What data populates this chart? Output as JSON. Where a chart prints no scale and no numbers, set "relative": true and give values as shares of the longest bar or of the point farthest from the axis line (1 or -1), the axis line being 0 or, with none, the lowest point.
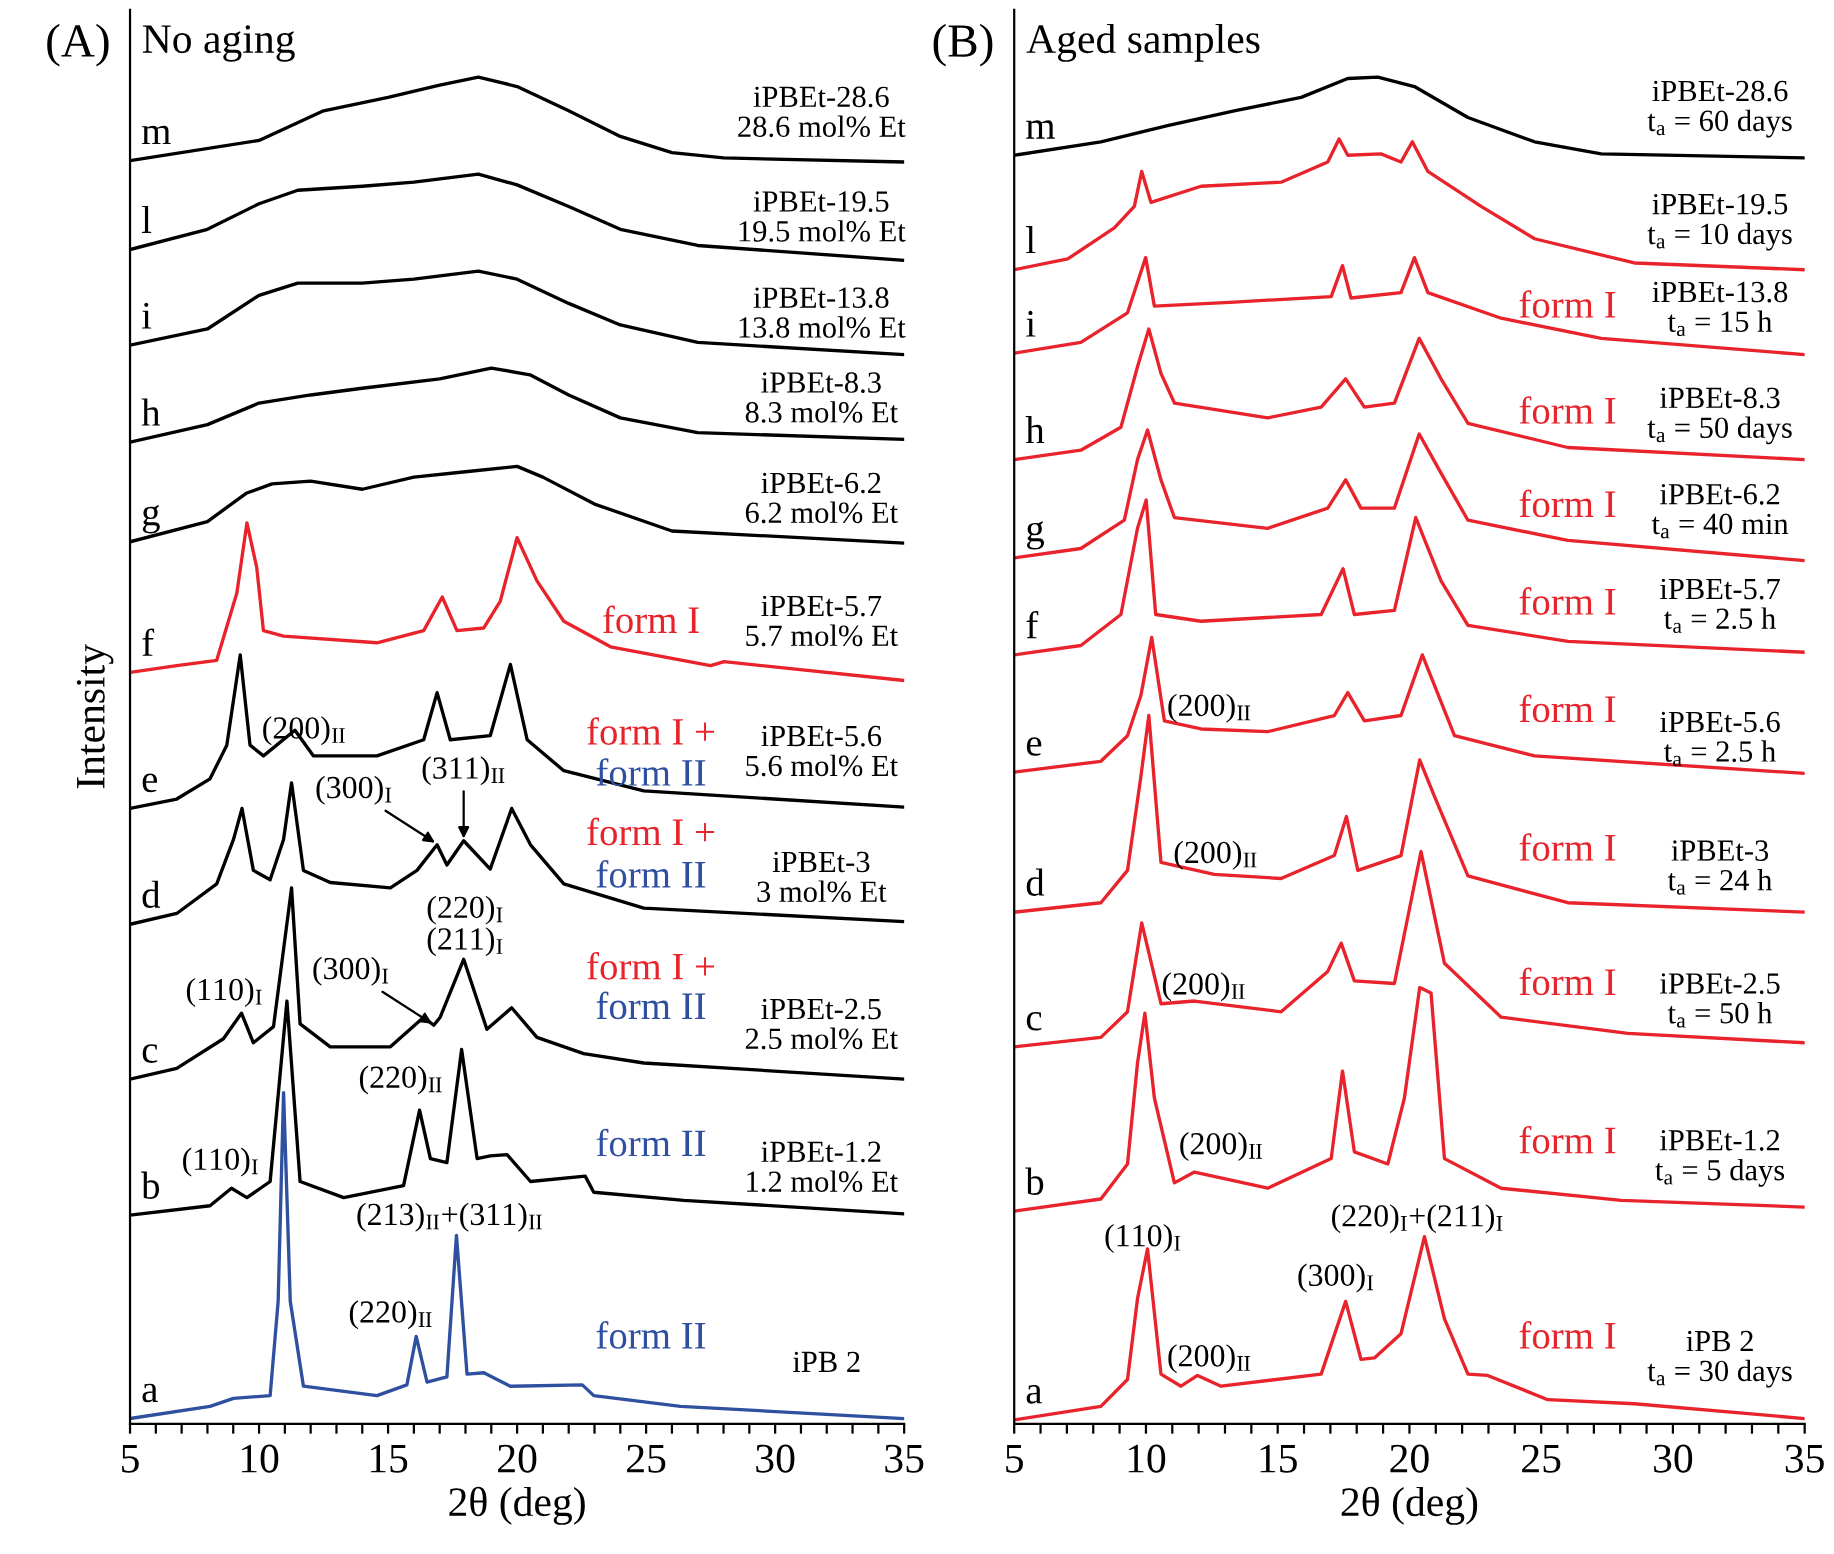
{
  "chart_data": [
    {
      "type": "line",
      "relative": true,
      "title": "(A)",
      "subtitle": "No aging",
      "xlabel": "2θ (deg)",
      "ylabel": "Intensity",
      "tick_labels": "x",
      "xlim": [
        5,
        35
      ],
      "xticks": [
        5,
        {
          "value": 6,
          "label": null
        },
        {
          "value": 7,
          "label": null
        },
        {
          "value": 8,
          "label": null
        },
        {
          "value": 9,
          "label": null
        },
        10,
        {
          "value": 11,
          "label": null
        },
        {
          "value": 12,
          "label": null
        },
        {
          "value": 13,
          "label": null
        },
        {
          "value": 14,
          "label": null
        },
        15,
        {
          "value": 16,
          "label": null
        },
        {
          "value": 17,
          "label": null
        },
        {
          "value": 18,
          "label": null
        },
        {
          "value": 19,
          "label": null
        },
        20,
        {
          "value": 21,
          "label": null
        },
        {
          "value": 22,
          "label": null
        },
        {
          "value": 23,
          "label": null
        },
        {
          "value": 24,
          "label": null
        },
        25,
        {
          "value": 26,
          "label": null
        },
        {
          "value": 27,
          "label": null
        },
        {
          "value": 28,
          "label": null
        },
        {
          "value": 29,
          "label": null
        },
        30,
        {
          "value": 31,
          "label": null
        },
        {
          "value": 32,
          "label": null
        },
        {
          "value": 33,
          "label": null
        },
        {
          "value": 34,
          "label": null
        },
        35
      ],
      "series": [
        {
          "name": "m",
          "color": "#000000",
          "x": [
            5,
            10,
            12.5,
            15,
            17,
            18.5,
            20,
            22,
            24,
            26,
            28,
            35
          ],
          "values": [
            0.938,
            0.953,
            0.975,
            0.985,
            0.994,
            1.0,
            0.993,
            0.975,
            0.956,
            0.944,
            0.94,
            0.937
          ]
        },
        {
          "name": "l",
          "color": "#000000",
          "x": [
            5,
            8,
            10,
            11.5,
            14,
            16,
            18.5,
            20,
            22,
            24,
            27,
            35
          ],
          "values": [
            0.872,
            0.887,
            0.906,
            0.916,
            0.919,
            0.922,
            0.928,
            0.92,
            0.904,
            0.887,
            0.875,
            0.864
          ]
        },
        {
          "name": "i",
          "color": "#000000",
          "x": [
            5,
            8,
            10,
            11.5,
            14,
            16,
            18.5,
            20,
            22,
            24,
            27,
            35
          ],
          "values": [
            0.801,
            0.813,
            0.838,
            0.847,
            0.847,
            0.85,
            0.856,
            0.85,
            0.832,
            0.816,
            0.803,
            0.794
          ]
        },
        {
          "name": "h",
          "color": "#000000",
          "x": [
            5,
            8,
            10,
            12,
            14,
            17,
            19,
            20.5,
            22,
            24,
            27,
            35
          ],
          "values": [
            0.729,
            0.742,
            0.758,
            0.764,
            0.769,
            0.776,
            0.784,
            0.779,
            0.764,
            0.747,
            0.736,
            0.731
          ]
        },
        {
          "name": "g",
          "color": "#000000",
          "x": [
            5,
            8,
            9.5,
            10.5,
            12,
            14,
            16,
            18,
            20,
            21,
            23,
            26,
            35
          ],
          "values": [
            0.655,
            0.67,
            0.691,
            0.698,
            0.7,
            0.694,
            0.703,
            0.707,
            0.711,
            0.703,
            0.683,
            0.663,
            0.654
          ]
        },
        {
          "name": "f",
          "color": "#e8232b",
          "x": [
            5,
            6.81,
            8.36,
            9.14,
            9.53,
            9.91,
            10.17,
            10.95,
            14.57,
            16.38,
            17.1,
            17.67,
            18.71,
            19.35,
            20.0,
            20.77,
            21.81,
            23.62,
            27.5,
            28.02,
            35
          ],
          "values": [
            0.558,
            0.563,
            0.567,
            0.617,
            0.669,
            0.636,
            0.589,
            0.585,
            0.58,
            0.589,
            0.614,
            0.589,
            0.591,
            0.611,
            0.658,
            0.626,
            0.596,
            0.577,
            0.563,
            0.566,
            0.552
          ]
        },
        {
          "name": "e",
          "color": "#000000",
          "x": [
            5,
            6.81,
            8.1,
            8.75,
            9.27,
            9.65,
            10.17,
            11.39,
            12.11,
            14.57,
            16.38,
            16.9,
            17.41,
            18.96,
            19.74,
            20.39,
            21.81,
            24.91,
            35
          ],
          "values": [
            0.457,
            0.464,
            0.479,
            0.504,
            0.571,
            0.504,
            0.496,
            0.515,
            0.496,
            0.496,
            0.508,
            0.543,
            0.508,
            0.511,
            0.564,
            0.508,
            0.485,
            0.47,
            0.458
          ]
        },
        {
          "name": "d",
          "color": "#000000",
          "x": [
            5,
            6.81,
            8.36,
            9.01,
            9.34,
            9.78,
            10.43,
            10.95,
            11.26,
            11.72,
            12.76,
            15.09,
            16.12,
            16.9,
            17.28,
            17.93,
            18.96,
            19.79,
            20.52,
            21.81,
            24.91,
            35
          ],
          "values": [
            0.371,
            0.379,
            0.401,
            0.434,
            0.457,
            0.411,
            0.404,
            0.434,
            0.476,
            0.411,
            0.402,
            0.398,
            0.411,
            0.43,
            0.415,
            0.433,
            0.412,
            0.457,
            0.43,
            0.401,
            0.383,
            0.373
          ]
        },
        {
          "name": "c",
          "color": "#000000",
          "x": [
            5,
            6.81,
            8.62,
            9.32,
            9.78,
            10.56,
            11.26,
            11.59,
            12.76,
            15.09,
            16.38,
            16.77,
            17.02,
            17.93,
            18.83,
            19.79,
            20.77,
            22.58,
            24.91,
            35
          ],
          "values": [
            0.256,
            0.264,
            0.286,
            0.305,
            0.283,
            0.295,
            0.398,
            0.297,
            0.28,
            0.28,
            0.302,
            0.296,
            0.302,
            0.345,
            0.293,
            0.309,
            0.287,
            0.275,
            0.268,
            0.256
          ]
        },
        {
          "name": "b",
          "color": "#000000",
          "x": [
            5,
            8.1,
            8.93,
            9.53,
            10.43,
            11.08,
            11.59,
            13.28,
            15.6,
            16.22,
            16.64,
            17.28,
            17.85,
            18.45,
            18.96,
            19.61,
            20.52,
            22.64,
            22.97,
            26.46,
            35
          ],
          "values": [
            0.155,
            0.162,
            0.175,
            0.168,
            0.18,
            0.314,
            0.18,
            0.168,
            0.177,
            0.233,
            0.197,
            0.194,
            0.278,
            0.197,
            0.199,
            0.2,
            0.18,
            0.184,
            0.172,
            0.166,
            0.156
          ]
        },
        {
          "name": "a",
          "color": "#2f4f9f",
          "x": [
            5,
            8.1,
            9.01,
            10.43,
            10.74,
            10.95,
            11.21,
            11.72,
            14.57,
            15.73,
            16.09,
            16.51,
            17.28,
            17.65,
            18.06,
            18.71,
            19.74,
            22.53,
            22.97,
            26.33,
            35
          ],
          "values": [
            0.004,
            0.013,
            0.019,
            0.021,
            0.091,
            0.246,
            0.091,
            0.028,
            0.021,
            0.029,
            0.065,
            0.031,
            0.035,
            0.14,
            0.037,
            0.038,
            0.028,
            0.029,
            0.021,
            0.013,
            0.004
          ]
        }
      ],
      "annotations": [
        "iPBEt-28.6\n28.6 mol% Et",
        "iPBEt-19.5\n19.5 mol% Et",
        "iPBEt-13.8\n13.8 mol% Et",
        "iPBEt-8.3\n8.3 mol% Et",
        "iPBEt-6.2\n6.2 mol% Et",
        "iPBEt-5.7\n5.7 mol% Et",
        "iPBEt-5.6\n5.6 mol% Et",
        "iPBEt-3\n3 mol% Et",
        "iPBEt-2.5\n2.5 mol% Et",
        "iPBEt-1.2\n1.2 mol% Et",
        "iPB 2",
        "form I",
        "form I +",
        "form II",
        "form I +",
        "form II",
        "form I +",
        "form II",
        "form II",
        "form II",
        "(200)$_{II}$",
        "(300)$_{I}$",
        "(311)$_{II}$",
        "(220)$_{I}$\n(211)$_{I}$",
        "(110)$_{I}$",
        "(300)$_{I}$",
        "(220)$_{II}$",
        "(110)$_{I}$",
        "(213)$_{II}$+(311)$_{II}$",
        "(220)$_{II}$"
      ]
    },
    {
      "type": "line",
      "relative": true,
      "title": "(B)",
      "subtitle": "Aged samples",
      "xlabel": "2θ (deg)",
      "tick_labels": "x",
      "xlim": [
        5,
        35
      ],
      "xticks": [
        5,
        {
          "value": 6,
          "label": null
        },
        {
          "value": 7,
          "label": null
        },
        {
          "value": 8,
          "label": null
        },
        {
          "value": 9,
          "label": null
        },
        10,
        {
          "value": 11,
          "label": null
        },
        {
          "value": 12,
          "label": null
        },
        {
          "value": 13,
          "label": null
        },
        {
          "value": 14,
          "label": null
        },
        15,
        {
          "value": 16,
          "label": null
        },
        {
          "value": 17,
          "label": null
        },
        {
          "value": 18,
          "label": null
        },
        {
          "value": 19,
          "label": null
        },
        20,
        {
          "value": 21,
          "label": null
        },
        {
          "value": 22,
          "label": null
        },
        {
          "value": 23,
          "label": null
        },
        {
          "value": 24,
          "label": null
        },
        25,
        {
          "value": 26,
          "label": null
        },
        {
          "value": 27,
          "label": null
        },
        {
          "value": 28,
          "label": null
        },
        {
          "value": 29,
          "label": null
        },
        30,
        {
          "value": 31,
          "label": null
        },
        {
          "value": 32,
          "label": null
        },
        {
          "value": 33,
          "label": null
        },
        {
          "value": 34,
          "label": null
        },
        35
      ],
      "series": [
        {
          "name": "m",
          "color": "#000000",
          "x": [
            5,
            8.29,
            10.82,
            13.35,
            15.89,
            17.66,
            18.8,
            20.19,
            22.22,
            24.75,
            27.28,
            35
          ],
          "values": [
            0.942,
            0.952,
            0.964,
            0.975,
            0.985,
            0.999,
            1.0,
            0.993,
            0.97,
            0.952,
            0.943,
            0.94
          ]
        },
        {
          "name": "l",
          "color": "#e8232b",
          "x": [
            5,
            7.03,
            8.8,
            9.56,
            9.84,
            10.19,
            12.09,
            15.13,
            16.9,
            17.33,
            17.66,
            18.92,
            19.68,
            20.11,
            20.7,
            22.72,
            24.75,
            28.54,
            35
          ],
          "values": [
            0.857,
            0.865,
            0.888,
            0.904,
            0.93,
            0.907,
            0.919,
            0.922,
            0.937,
            0.954,
            0.942,
            0.943,
            0.937,
            0.952,
            0.93,
            0.904,
            0.88,
            0.862,
            0.857
          ]
        },
        {
          "name": "i",
          "color": "#e8232b",
          "x": [
            5,
            7.53,
            9.3,
            9.99,
            10.32,
            13.35,
            17.03,
            17.46,
            17.78,
            19.68,
            20.19,
            20.7,
            23.48,
            27.28,
            35
          ],
          "values": [
            0.795,
            0.803,
            0.825,
            0.866,
            0.83,
            0.833,
            0.837,
            0.86,
            0.836,
            0.84,
            0.866,
            0.84,
            0.821,
            0.806,
            0.794
          ]
        },
        {
          "name": "h",
          "color": "#e8232b",
          "x": [
            5,
            7.53,
            9.05,
            9.68,
            10.11,
            10.57,
            11.08,
            14.62,
            16.65,
            17.58,
            18.29,
            19.43,
            20.37,
            21.2,
            22.22,
            26.01,
            35
          ],
          "values": [
            0.716,
            0.723,
            0.74,
            0.785,
            0.813,
            0.78,
            0.758,
            0.747,
            0.755,
            0.776,
            0.755,
            0.758,
            0.806,
            0.776,
            0.743,
            0.725,
            0.716
          ]
        },
        {
          "name": "g",
          "color": "#e8232b",
          "x": [
            5,
            7.53,
            9.18,
            9.68,
            10.06,
            10.57,
            11.08,
            14.62,
            16.9,
            17.58,
            18.16,
            19.43,
            20.37,
            21.2,
            22.22,
            26.01,
            35
          ],
          "values": [
            0.643,
            0.65,
            0.671,
            0.716,
            0.738,
            0.701,
            0.673,
            0.665,
            0.68,
            0.701,
            0.68,
            0.68,
            0.735,
            0.706,
            0.671,
            0.656,
            0.641
          ]
        },
        {
          "name": "f",
          "color": "#e8232b",
          "x": [
            5,
            7.53,
            9.05,
            9.68,
            10.01,
            10.37,
            12.09,
            16.65,
            17.48,
            17.91,
            19.43,
            20.24,
            21.2,
            22.22,
            26.01,
            35
          ],
          "values": [
            0.571,
            0.578,
            0.601,
            0.665,
            0.686,
            0.601,
            0.596,
            0.601,
            0.635,
            0.601,
            0.604,
            0.673,
            0.626,
            0.593,
            0.581,
            0.573
          ]
        },
        {
          "name": "e",
          "color": "#e8232b",
          "x": [
            5,
            8.29,
            9.3,
            9.81,
            10.22,
            10.7,
            12.09,
            14.62,
            17.15,
            17.66,
            18.29,
            19.68,
            20.49,
            21.71,
            24.75,
            35
          ],
          "values": [
            0.484,
            0.492,
            0.511,
            0.541,
            0.584,
            0.522,
            0.516,
            0.514,
            0.526,
            0.543,
            0.522,
            0.526,
            0.571,
            0.511,
            0.496,
            0.483
          ]
        },
        {
          "name": "d",
          "color": "#e8232b",
          "x": [
            5,
            8.29,
            9.3,
            9.81,
            10.11,
            10.57,
            12.59,
            15.13,
            17.15,
            17.61,
            18.04,
            19.68,
            20.39,
            20.95,
            22.22,
            26.01,
            35
          ],
          "values": [
            0.38,
            0.387,
            0.411,
            0.481,
            0.526,
            0.417,
            0.408,
            0.405,
            0.422,
            0.451,
            0.411,
            0.422,
            0.493,
            0.466,
            0.407,
            0.387,
            0.38
          ]
        },
        {
          "name": "c",
          "color": "#e8232b",
          "x": [
            5,
            8.29,
            9.3,
            9.84,
            10.57,
            11.84,
            15.13,
            16.9,
            17.41,
            17.91,
            19.43,
            20.44,
            21.33,
            23.48,
            28.29,
            35
          ],
          "values": [
            0.28,
            0.287,
            0.306,
            0.372,
            0.312,
            0.314,
            0.306,
            0.336,
            0.357,
            0.329,
            0.327,
            0.425,
            0.342,
            0.302,
            0.29,
            0.283
          ]
        },
        {
          "name": "b",
          "color": "#e8232b",
          "x": [
            5,
            8.29,
            9.3,
            9.68,
            9.96,
            10.32,
            11.08,
            11.84,
            14.62,
            17.03,
            17.46,
            17.91,
            19.18,
            19.81,
            20.39,
            20.82,
            21.33,
            23.48,
            28.04,
            35
          ],
          "values": [
            0.158,
            0.167,
            0.193,
            0.268,
            0.305,
            0.242,
            0.179,
            0.187,
            0.175,
            0.197,
            0.262,
            0.202,
            0.193,
            0.242,
            0.324,
            0.32,
            0.197,
            0.175,
            0.166,
            0.161
          ]
        },
        {
          "name": "a",
          "color": "#e8232b",
          "x": [
            5,
            8.29,
            9.3,
            9.68,
            10.06,
            10.57,
            11.33,
            11.96,
            12.85,
            16.65,
            17.58,
            18.16,
            18.67,
            19.68,
            20.57,
            21.33,
            22.22,
            22.97,
            25.25,
            28.54,
            35
          ],
          "values": [
            0.003,
            0.013,
            0.033,
            0.093,
            0.13,
            0.037,
            0.028,
            0.036,
            0.028,
            0.037,
            0.091,
            0.048,
            0.049,
            0.067,
            0.139,
            0.078,
            0.037,
            0.036,
            0.018,
            0.015,
            0.004
          ]
        }
      ],
      "annotations": [
        "iPBEt-28.6\nt$_{a}$ = 60 days",
        "iPBEt-19.5\nt$_{a}$ = 10 days",
        "iPBEt-13.8\nt$_{a}$ = 15 h",
        "iPBEt-8.3\nt$_{a}$ = 50 days",
        "iPBEt-6.2\nt$_{a}$ = 40 min",
        "iPBEt-5.7\nt$_{a}$ = 2.5 h",
        "iPBEt-5.6\nt$_{a}$ = 2.5 h",
        "iPBEt-3\nt$_{a}$ = 24 h",
        "iPBEt-2.5\nt$_{a}$ = 50 h",
        "iPBEt-1.2\nt$_{a}$ = 5 days",
        "iPB 2\nt$_{a}$ = 30 days",
        "form I",
        "form I",
        "form I",
        "form I",
        "form I",
        "form I",
        "form I",
        "form I",
        "form I",
        "(200)$_{II}$",
        "(200)$_{II}$",
        "(200)$_{II}$",
        "(200)$_{II}$",
        "(200)$_{II}$",
        "(110)$_{I}$",
        "(300)$_{I}$",
        "(220)$_{I}$+(211)$_{I}$"
      ]
    }
  ]
}
